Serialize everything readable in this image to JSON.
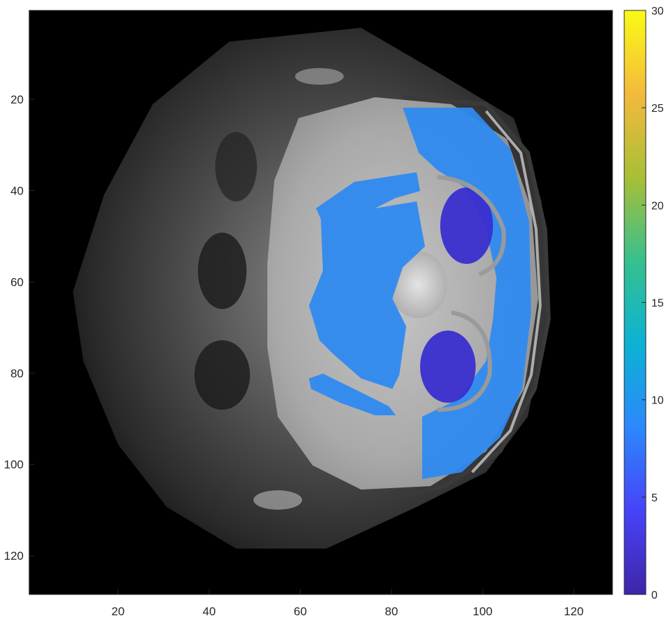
{
  "chart_data": {
    "type": "heatmap",
    "description_kind": "overlay-map",
    "x_ticks": [
      20,
      40,
      60,
      80,
      100,
      120
    ],
    "y_ticks": [
      20,
      40,
      60,
      80,
      100,
      120
    ],
    "xlim": [
      0.5,
      128.5
    ],
    "ylim": [
      0.5,
      128.5
    ],
    "y_reversed": true,
    "colorbar": {
      "limits": [
        0,
        30
      ],
      "ticks": [
        0,
        5,
        10,
        15,
        20,
        25,
        30
      ],
      "colormap": "parula",
      "stops": [
        "#3e26a8",
        "#4743f8",
        "#2c88fc",
        "#0cb2d4",
        "#36c08e",
        "#a8bf36",
        "#f4ba3c",
        "#f9fb15"
      ]
    },
    "overlay_regions": [
      {
        "name": "outer-ring",
        "approx_value": 10,
        "color": "#2f8af0"
      },
      {
        "name": "left-lobe",
        "approx_value": 10,
        "color": "#2f8af0"
      },
      {
        "name": "upper-dark-cavity",
        "approx_value": 1,
        "color": "#3a2fd0"
      },
      {
        "name": "lower-dark-cavity",
        "approx_value": 1,
        "color": "#3a2fd0"
      }
    ],
    "grid": false,
    "colors": {
      "background": "#000000",
      "axis": "#262626"
    }
  }
}
